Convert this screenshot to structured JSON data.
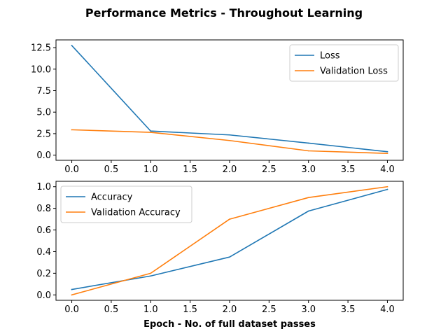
{
  "figure": {
    "title": "Performance Metrics - Throughout Learning",
    "xlabel": "Epoch - No. of full dataset passes"
  },
  "chart_data": [
    {
      "type": "line",
      "title": "",
      "xlabel": "",
      "ylabel": "",
      "x": [
        0,
        1,
        2,
        3,
        4
      ],
      "xlim": [
        -0.2,
        4.2
      ],
      "ylim": [
        -0.6,
        13.4
      ],
      "xticks": [
        0.0,
        0.5,
        1.0,
        1.5,
        2.0,
        2.5,
        3.0,
        3.5,
        4.0
      ],
      "xtick_labels": [
        "0.0",
        "0.5",
        "1.0",
        "1.5",
        "2.0",
        "2.5",
        "3.0",
        "3.5",
        "4.0"
      ],
      "yticks": [
        0.0,
        2.5,
        5.0,
        7.5,
        10.0,
        12.5
      ],
      "ytick_labels": [
        "0.0",
        "2.5",
        "5.0",
        "7.5",
        "10.0",
        "12.5"
      ],
      "grid": false,
      "legend_position": "top-right",
      "series": [
        {
          "name": "Loss",
          "color": "#1f77b4",
          "values": [
            12.75,
            2.8,
            2.35,
            1.4,
            0.4
          ]
        },
        {
          "name": "Validation Loss",
          "color": "#ff7f0e",
          "values": [
            2.95,
            2.65,
            1.7,
            0.5,
            0.2
          ]
        }
      ]
    },
    {
      "type": "line",
      "title": "",
      "xlabel": "Epoch - No. of full dataset passes",
      "ylabel": "",
      "x": [
        0,
        1,
        2,
        3,
        4
      ],
      "xlim": [
        -0.2,
        4.2
      ],
      "ylim": [
        -0.05,
        1.05
      ],
      "xticks": [
        0.0,
        0.5,
        1.0,
        1.5,
        2.0,
        2.5,
        3.0,
        3.5,
        4.0
      ],
      "xtick_labels": [
        "0.0",
        "0.5",
        "1.0",
        "1.5",
        "2.0",
        "2.5",
        "3.0",
        "3.5",
        "4.0"
      ],
      "yticks": [
        0.0,
        0.2,
        0.4,
        0.6,
        0.8,
        1.0
      ],
      "ytick_labels": [
        "0.0",
        "0.2",
        "0.4",
        "0.6",
        "0.8",
        "1.0"
      ],
      "grid": false,
      "legend_position": "top-left",
      "series": [
        {
          "name": "Accuracy",
          "color": "#1f77b4",
          "values": [
            0.05,
            0.175,
            0.35,
            0.775,
            0.975
          ]
        },
        {
          "name": "Validation Accuracy",
          "color": "#ff7f0e",
          "values": [
            0.0,
            0.2,
            0.7,
            0.9,
            1.0
          ]
        }
      ]
    }
  ]
}
